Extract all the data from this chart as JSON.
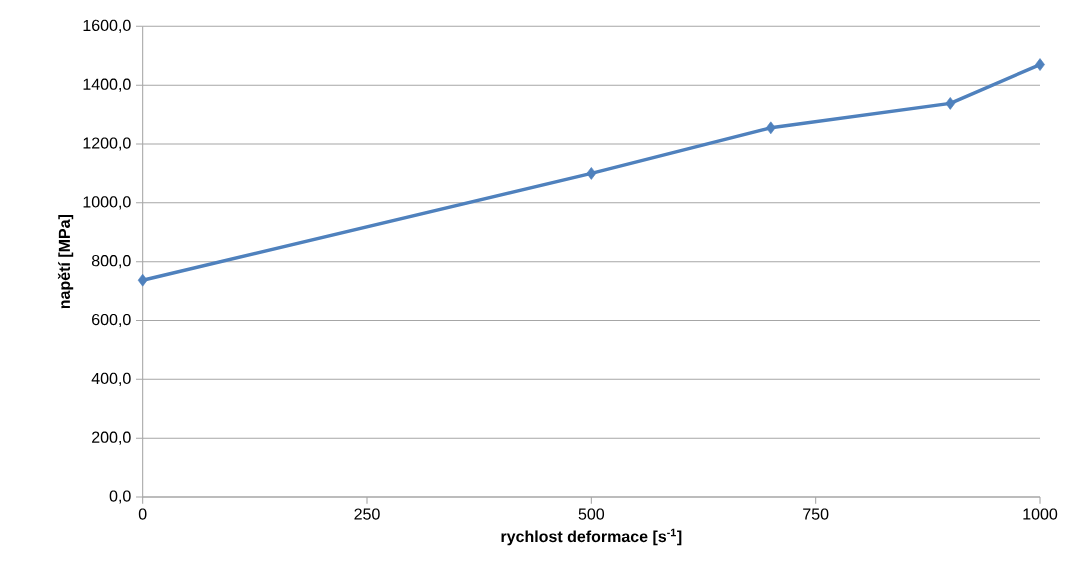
{
  "chart_data": {
    "type": "line",
    "xlabel": "rychlost deformace [s$^{-1}$]",
    "ylabel": "napětí [MPa]",
    "x": [
      0,
      500,
      700,
      900,
      1000
    ],
    "series": [
      {
        "color": "#4f81bd",
        "values": [
          737,
          1100,
          1255,
          1338,
          1470
        ]
      }
    ],
    "xlim": [
      0,
      1000
    ],
    "ylim": [
      0,
      1600
    ],
    "xticks": [
      0,
      250,
      500,
      750,
      1000
    ],
    "yticks": [
      {
        "value": 0,
        "label": "0,0"
      },
      {
        "value": 200,
        "label": "200,0"
      },
      {
        "value": 400,
        "label": "400,0"
      },
      {
        "value": 600,
        "label": "600,0"
      },
      {
        "value": 800,
        "label": "800,0"
      },
      {
        "value": 1000,
        "label": "1000,0"
      },
      {
        "value": 1200,
        "label": "1200,0"
      },
      {
        "value": 1400,
        "label": "1400,0"
      },
      {
        "value": 1600,
        "label": "1600,0"
      }
    ],
    "grid": "y",
    "marker": "diamond"
  }
}
